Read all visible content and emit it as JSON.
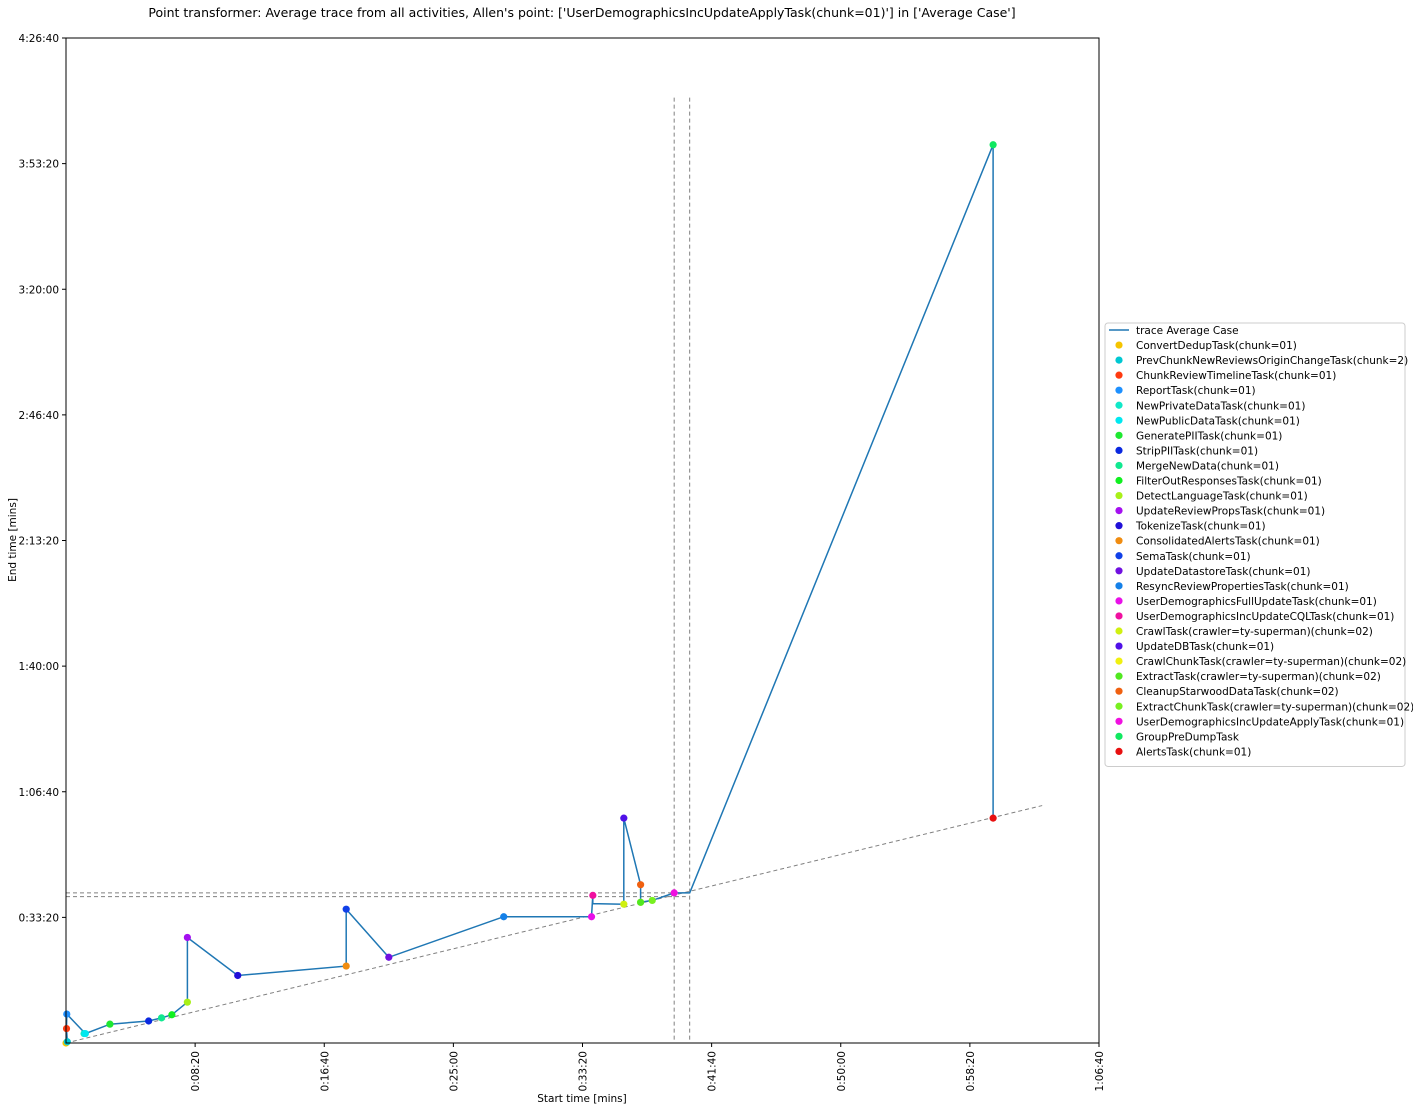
{
  "chart_data": {
    "type": "scatter",
    "title": "Point transformer: Average trace from all activities, Allen's point: ['UserDemographicsIncUpdateApplyTask(chunk=01)'] in ['Average Case']",
    "xlabel": "Start time [mins]",
    "ylabel": "End time [mins]",
    "x_unit": "seconds",
    "y_unit": "seconds",
    "xlim": [
      0,
      4000
    ],
    "ylim": [
      0,
      16000
    ],
    "x_ticks": [
      {
        "value": 500,
        "label": "0:08:20"
      },
      {
        "value": 1000,
        "label": "0:16:40"
      },
      {
        "value": 1500,
        "label": "0:25:00"
      },
      {
        "value": 2000,
        "label": "0:33:20"
      },
      {
        "value": 2500,
        "label": "0:41:40"
      },
      {
        "value": 3000,
        "label": "0:50:00"
      },
      {
        "value": 3500,
        "label": "0:58:20"
      },
      {
        "value": 4000,
        "label": "1:06:40"
      }
    ],
    "y_ticks": [
      {
        "value": 2000,
        "label": "0:33:20"
      },
      {
        "value": 4000,
        "label": "1:06:40"
      },
      {
        "value": 6000,
        "label": "1:40:00"
      },
      {
        "value": 8000,
        "label": "2:13:20"
      },
      {
        "value": 10000,
        "label": "2:46:40"
      },
      {
        "value": 12000,
        "label": "3:20:00"
      },
      {
        "value": 14000,
        "label": "3:53:20"
      },
      {
        "value": 16000,
        "label": "4:26:40"
      }
    ],
    "grid": false,
    "legend_position": "center-right",
    "trace_name": "trace Average Case",
    "trace_color": "#1f77b4",
    "points": [
      {
        "name": "ConvertDedupTask(chunk=01)",
        "color": "#f5c400",
        "x": 0,
        "y": 0
      },
      {
        "name": "PrevChunkNewReviewsOriginChangeTask(chunk=2)",
        "color": "#00c8d2",
        "x": 5,
        "y": 20
      },
      {
        "name": "ChunkReviewTimelineTask(chunk=01)",
        "color": "#ff3a10",
        "x": 2,
        "y": 230
      },
      {
        "name": "ReportTask(chunk=01)",
        "color": "#1e90ff",
        "x": 3,
        "y": 460
      },
      {
        "name": "NewPrivateDataTask(chunk=01)",
        "color": "#10e8c8",
        "x": 70,
        "y": 150
      },
      {
        "name": "NewPublicDataTask(chunk=01)",
        "color": "#00e8f0",
        "x": 75,
        "y": 150
      },
      {
        "name": "GeneratePIITask(chunk=01)",
        "color": "#1ee830",
        "x": 170,
        "y": 300
      },
      {
        "name": "StripPIITask(chunk=01)",
        "color": "#0a28e0",
        "x": 320,
        "y": 350
      },
      {
        "name": "MergeNewData(chunk=01)",
        "color": "#10e890",
        "x": 370,
        "y": 400
      },
      {
        "name": "FilterOutResponsesTask(chunk=01)",
        "color": "#10f020",
        "x": 410,
        "y": 450
      },
      {
        "name": "DetectLanguageTask(chunk=01)",
        "color": "#a8f018",
        "x": 470,
        "y": 650
      },
      {
        "name": "UpdateReviewPropsTask(chunk=01)",
        "color": "#a410f0",
        "x": 470,
        "y": 1680
      },
      {
        "name": "TokenizeTask(chunk=01)",
        "color": "#2010d8",
        "x": 665,
        "y": 1075
      },
      {
        "name": "ConsolidatedAlertsTask(chunk=01)",
        "color": "#f08c10",
        "x": 1085,
        "y": 1225
      },
      {
        "name": "SemaTask(chunk=01)",
        "color": "#1040e8",
        "x": 1085,
        "y": 2130
      },
      {
        "name": "UpdateDatastoreTask(chunk=01)",
        "color": "#7010e0",
        "x": 1250,
        "y": 1365
      },
      {
        "name": "ResyncReviewPropertiesTask(chunk=01)",
        "color": "#1480e8",
        "x": 1695,
        "y": 2010
      },
      {
        "name": "UserDemographicsFullUpdateTask(chunk=01)",
        "color": "#e810e8",
        "x": 2035,
        "y": 2010
      },
      {
        "name": "UserDemographicsIncUpdateCQLTask(chunk=01)",
        "color": "#f010a0",
        "x": 2040,
        "y": 2350
      },
      {
        "name": "CrawlTask(crawler=ty-superman)(chunk=02)",
        "color": "#d0f010",
        "x": 2160,
        "y": 2210
      },
      {
        "name": "UpdateDBTask(chunk=01)",
        "color": "#5010e8",
        "x": 2160,
        "y": 3580
      },
      {
        "name": "CrawlChunkTask(crawler=ty-superman)(chunk=02)",
        "color": "#f0f010",
        "x": 2225,
        "y": 2240
      },
      {
        "name": "ExtractTask(crawler=ty-superman)(chunk=02)",
        "color": "#50e820",
        "x": 2225,
        "y": 2240
      },
      {
        "name": "CleanupStarwoodDataTask(chunk=02)",
        "color": "#f06010",
        "x": 2225,
        "y": 2520
      },
      {
        "name": "ExtractChunkTask(crawler=ty-superman)(chunk=02)",
        "color": "#78f020",
        "x": 2270,
        "y": 2270
      },
      {
        "name": "UserDemographicsIncUpdateApplyTask(chunk=01)",
        "color": "#f010e0",
        "x": 2355,
        "y": 2390
      },
      {
        "name": "GroupPreDumpTask",
        "color": "#10e860",
        "x": 3590,
        "y": 14300
      },
      {
        "name": "AlertsTask(chunk=01)",
        "color": "#e81010",
        "x": 3590,
        "y": 3580
      }
    ],
    "trace_path": [
      [
        0,
        0
      ],
      [
        5,
        20
      ],
      [
        2,
        230
      ],
      [
        3,
        460
      ],
      [
        75,
        150
      ],
      [
        170,
        300
      ],
      [
        320,
        350
      ],
      [
        370,
        400
      ],
      [
        410,
        450
      ],
      [
        470,
        650
      ],
      [
        470,
        1680
      ],
      [
        665,
        1075
      ],
      [
        1085,
        1225
      ],
      [
        1085,
        2130
      ],
      [
        1250,
        1365
      ],
      [
        1695,
        2010
      ],
      [
        2035,
        2010
      ],
      [
        2040,
        2350
      ],
      [
        2040,
        2220
      ],
      [
        2160,
        2210
      ],
      [
        2160,
        3580
      ],
      [
        2225,
        2520
      ],
      [
        2225,
        2240
      ],
      [
        2270,
        2270
      ],
      [
        2355,
        2390
      ],
      [
        2415,
        2390
      ],
      [
        3590,
        14300
      ],
      [
        3590,
        3580
      ]
    ],
    "reference_line": {
      "from": [
        0,
        0
      ],
      "to": [
        3780,
        3780
      ]
    },
    "allen_lines": {
      "vertical_x": [
        2355,
        2415
      ],
      "vertical_y_top": 15050,
      "horizontal_y": [
        2330,
        2390
      ],
      "horizontal_x_right": 2400
    }
  }
}
